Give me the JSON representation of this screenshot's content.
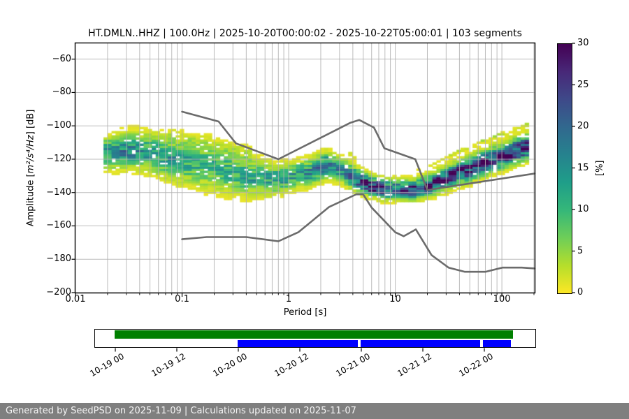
{
  "title": "HT.DMLN..HHZ | 100.0Hz | 2025-10-20T00:00:02 - 2025-10-22T05:00:01 | 103 segments",
  "station": "HT.DMLN..HHZ",
  "sampling_rate": "100.0Hz",
  "time_range": "2025-10-20T00:00:02 - 2025-10-22T05:00:01",
  "segments": "103 segments",
  "axes": {
    "xlabel": "Period [s]",
    "ylabel_prefix": "Amplitude [",
    "ylabel_math": "m²/s⁴/Hz",
    "ylabel_suffix": "] [dB]",
    "x_ticks": [
      {
        "label": "0.01",
        "value": 0.01
      },
      {
        "label": "0.1",
        "value": 0.1
      },
      {
        "label": "1",
        "value": 1
      },
      {
        "label": "10",
        "value": 10
      },
      {
        "label": "100",
        "value": 100
      }
    ],
    "y_ticks": [
      {
        "label": "−60",
        "value": -60
      },
      {
        "label": "−80",
        "value": -80
      },
      {
        "label": "−100",
        "value": -100
      },
      {
        "label": "−120",
        "value": -120
      },
      {
        "label": "−140",
        "value": -140
      },
      {
        "label": "−160",
        "value": -160
      },
      {
        "label": "−180",
        "value": -180
      },
      {
        "label": "−200",
        "value": -200
      }
    ],
    "grid_color": "#b0b0b0",
    "spine_color": "#000000"
  },
  "colorbar": {
    "label": "[%]",
    "ticks": [
      0,
      5,
      10,
      15,
      20,
      25,
      30
    ],
    "min": 0,
    "max": 30,
    "viridis_stops": [
      "#440154",
      "#482878",
      "#3e4989",
      "#31688e",
      "#26828e",
      "#1f9e89",
      "#35b779",
      "#6ece58",
      "#b5de2b",
      "#fde725"
    ]
  },
  "chart_data": {
    "type": "heatmap",
    "title": "HT.DMLN..HHZ | 100.0Hz | 2025-10-20T00:00:02 - 2025-10-22T05:00:01 | 103 segments",
    "xlabel": "Period [s]",
    "ylabel": "Amplitude [m²/s⁴/Hz] [dB]",
    "x_scale": "log",
    "xlim": [
      0.01,
      203
    ],
    "ylim": [
      -200,
      -50.5
    ],
    "colorbar_range_percent": [
      0,
      30
    ],
    "grid": true,
    "histogram": {
      "period_log_range": [
        -1.737,
        2.28
      ],
      "period_step_octaves": 0.125,
      "db_bin_height": 1.25,
      "mode_curve_logp_db": [
        [
          -1.74,
          -116.5
        ],
        [
          -1.48,
          -114.5
        ],
        [
          -1.3,
          -116
        ],
        [
          -1.1,
          -119.5
        ],
        [
          -0.95,
          -121.5
        ],
        [
          -0.75,
          -123.5
        ],
        [
          -0.55,
          -127.5
        ],
        [
          -0.35,
          -130.5
        ],
        [
          -0.15,
          -132
        ],
        [
          0.0,
          -130.5
        ],
        [
          0.2,
          -127.5
        ],
        [
          0.35,
          -123.5
        ],
        [
          0.5,
          -126.5
        ],
        [
          0.65,
          -132.5
        ],
        [
          0.75,
          -135.5
        ],
        [
          0.9,
          -138
        ],
        [
          1.1,
          -138.5
        ],
        [
          1.2,
          -138
        ],
        [
          1.35,
          -135
        ],
        [
          1.5,
          -130.5
        ],
        [
          1.7,
          -125.5
        ],
        [
          1.9,
          -120.5
        ],
        [
          2.1,
          -115.5
        ],
        [
          2.28,
          -111.5
        ]
      ],
      "spread_curve_logp_db": [
        [
          -1.74,
          5.5
        ],
        [
          -1.4,
          6
        ],
        [
          -1.1,
          7
        ],
        [
          -0.8,
          8
        ],
        [
          -0.5,
          7
        ],
        [
          -0.2,
          5.5
        ],
        [
          0.0,
          4.5
        ],
        [
          0.3,
          4.5
        ],
        [
          0.6,
          4
        ],
        [
          0.8,
          3.2
        ],
        [
          1.1,
          3.2
        ],
        [
          1.3,
          3.6
        ],
        [
          1.6,
          4
        ],
        [
          2.0,
          4.2
        ],
        [
          2.28,
          4.2
        ]
      ],
      "peak_percent_curve_logp_pct": [
        [
          -1.74,
          13
        ],
        [
          -1.5,
          16
        ],
        [
          -1.2,
          13
        ],
        [
          -0.9,
          11
        ],
        [
          -0.6,
          11
        ],
        [
          -0.3,
          12
        ],
        [
          -0.1,
          13
        ],
        [
          0.1,
          14
        ],
        [
          0.35,
          18
        ],
        [
          0.5,
          14
        ],
        [
          0.65,
          22
        ],
        [
          0.78,
          29
        ],
        [
          0.95,
          26
        ],
        [
          1.15,
          24
        ],
        [
          1.35,
          25
        ],
        [
          1.55,
          26
        ],
        [
          1.75,
          26
        ],
        [
          1.95,
          27
        ],
        [
          2.1,
          28
        ],
        [
          2.28,
          27
        ]
      ],
      "secondary_upper_band": {
        "logp_min": 0.55,
        "offset_db": 14.5,
        "sigma_db": 2.0,
        "peak_percent": 3.5
      },
      "short_period_upper_tail": {
        "logp_range": [
          -1.15,
          -0.35
        ],
        "offset_db": 11,
        "sigma_db": 4.0,
        "peak_percent": 5
      }
    },
    "noise_models": {
      "color": "#6b6b6b",
      "nhnm_period_db": [
        [
          0.1,
          -91.5
        ],
        [
          0.22,
          -97.4
        ],
        [
          0.32,
          -110.5
        ],
        [
          0.8,
          -120.0
        ],
        [
          3.8,
          -98.1
        ],
        [
          4.6,
          -96.5
        ],
        [
          6.3,
          -101.0
        ],
        [
          7.9,
          -113.5
        ],
        [
          15.4,
          -120.0
        ],
        [
          20.0,
          -138.5
        ],
        [
          203,
          -128.6
        ]
      ],
      "nlnm_period_db": [
        [
          0.1,
          -168.0
        ],
        [
          0.17,
          -166.7
        ],
        [
          0.4,
          -166.7
        ],
        [
          0.8,
          -169.2
        ],
        [
          1.24,
          -163.7
        ],
        [
          2.4,
          -148.6
        ],
        [
          4.3,
          -141.1
        ],
        [
          5.0,
          -141.1
        ],
        [
          6.0,
          -149.0
        ],
        [
          10.0,
          -163.8
        ],
        [
          12.0,
          -166.2
        ],
        [
          15.6,
          -162.1
        ],
        [
          21.9,
          -177.5
        ],
        [
          31.6,
          -185.0
        ],
        [
          45.0,
          -187.5
        ],
        [
          70.0,
          -187.5
        ],
        [
          101.0,
          -185.0
        ],
        [
          154.0,
          -185.0
        ],
        [
          203,
          -185.5
        ]
      ]
    }
  },
  "timeline": {
    "tick_labels": [
      "10-19 00",
      "10-19 12",
      "10-20 00",
      "10-20 12",
      "10-21 00",
      "10-21 12",
      "10-22 00"
    ],
    "tick_pct": [
      4.75,
      18.67,
      32.59,
      46.52,
      60.44,
      74.37,
      88.29
    ],
    "availability_bar": {
      "color": "#008000",
      "start_pct": 4.43,
      "end_pct": 94.94
    },
    "processed_bars": {
      "color": "#0000ff",
      "segments_pct": [
        [
          32.44,
          59.65
        ],
        [
          60.28,
          87.5
        ],
        [
          88.13,
          94.46
        ]
      ]
    }
  },
  "footer": {
    "text": "Generated by SeedPSD on 2025-11-09 | Calculations updated on 2025-11-07",
    "bg_color": "#7f7f7f"
  }
}
